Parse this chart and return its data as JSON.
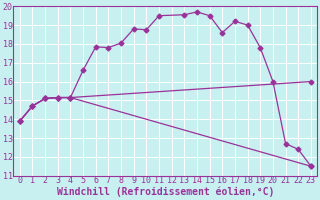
{
  "xlabel": "Windchill (Refroidissement éolien,°C)",
  "background_color": "#c8f0f0",
  "line_color": "#993399",
  "grid_color": "#aadddd",
  "xlim": [
    -0.5,
    23.5
  ],
  "ylim": [
    11,
    20
  ],
  "xticks": [
    0,
    1,
    2,
    3,
    4,
    5,
    6,
    7,
    8,
    9,
    10,
    11,
    12,
    13,
    14,
    15,
    16,
    17,
    18,
    19,
    20,
    21,
    22,
    23
  ],
  "yticks": [
    11,
    12,
    13,
    14,
    15,
    16,
    17,
    18,
    19,
    20
  ],
  "line1_x": [
    0,
    1,
    2,
    3,
    4,
    5,
    6,
    7,
    8,
    9,
    10,
    11,
    13,
    14,
    15,
    16,
    17,
    18,
    19,
    20,
    21,
    22,
    23
  ],
  "line1_y": [
    13.9,
    14.7,
    15.1,
    15.15,
    15.15,
    16.6,
    17.85,
    17.8,
    18.05,
    18.8,
    18.75,
    19.5,
    19.55,
    19.7,
    19.5,
    18.6,
    19.2,
    19.0,
    17.8,
    16.0,
    12.7,
    12.4,
    11.5
  ],
  "line2_x": [
    0,
    1,
    2,
    3,
    4,
    23
  ],
  "line2_y": [
    13.9,
    14.7,
    15.1,
    15.15,
    15.15,
    16.0
  ],
  "line3_x": [
    0,
    1,
    2,
    3,
    4,
    23
  ],
  "line3_y": [
    13.9,
    14.7,
    15.1,
    15.15,
    15.15,
    11.5
  ],
  "marker": "D",
  "marker_size": 2.5,
  "line_width": 0.9,
  "font_size": 6,
  "xlabel_font_size": 7
}
